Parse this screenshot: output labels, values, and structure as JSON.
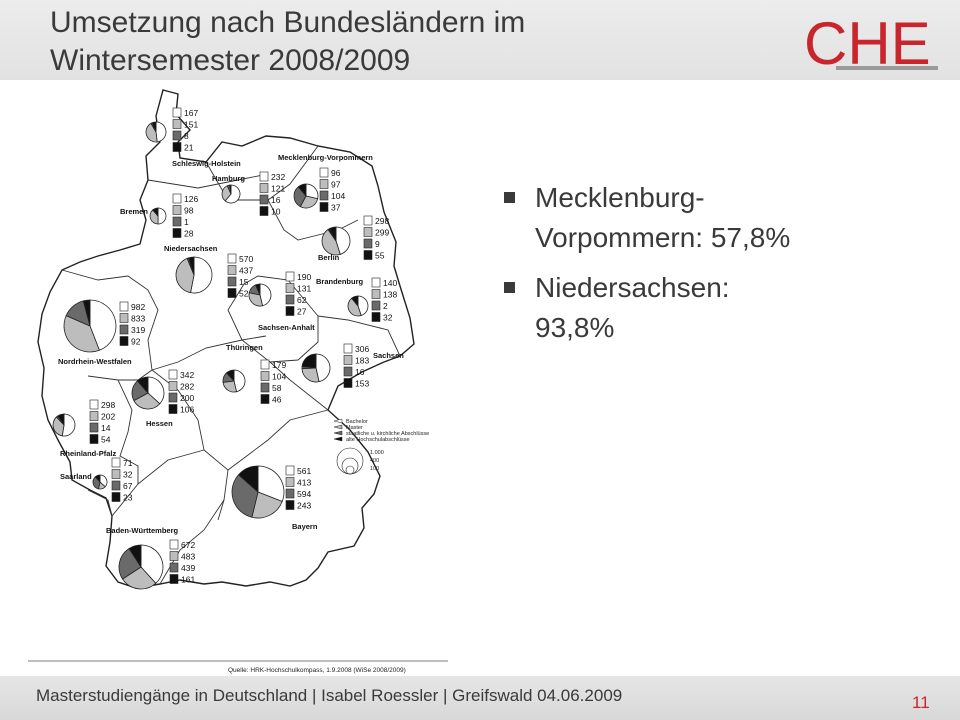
{
  "slide": {
    "title_line1": "Umsetzung nach Bundesländern im",
    "title_line2": "Wintersemester 2008/2009",
    "logo_text": "CHE",
    "colors": {
      "accent": "#c8262c",
      "text": "#3a3a3a"
    }
  },
  "bullets": [
    {
      "line1": "Mecklenburg-",
      "line2": "Vorpommern: 57,8%"
    },
    {
      "line1": "Niedersachsen:",
      "line2": "93,8%"
    }
  ],
  "map": {
    "states": [
      {
        "name": "Schleswig-Holstein",
        "values": [
          "167",
          "151",
          "8",
          "21"
        ]
      },
      {
        "name": "Mecklenburg-Vorpommern",
        "values": [
          "96",
          "97",
          "104",
          "37"
        ]
      },
      {
        "name": "Hamburg",
        "values": [
          "232",
          "121",
          "16",
          "10"
        ]
      },
      {
        "name": "Bremen",
        "values": [
          "126",
          "98",
          "1",
          "28"
        ]
      },
      {
        "name": "Berlin",
        "values": [
          "298",
          "299",
          "9",
          "55"
        ]
      },
      {
        "name": "Niedersachsen",
        "values": [
          "570",
          "437",
          "15",
          "52"
        ]
      },
      {
        "name": "Brandenburg",
        "values": [
          "140",
          "138",
          "2",
          "32"
        ]
      },
      {
        "name": "Sachsen-Anhalt",
        "values": [
          "190",
          "131",
          "62",
          "27"
        ]
      },
      {
        "name": "Nordrhein-Westfalen",
        "values": [
          "982",
          "833",
          "319",
          "92"
        ]
      },
      {
        "name": "Thüringen",
        "values": [
          "179",
          "104",
          "58",
          "46"
        ]
      },
      {
        "name": "Sachsen",
        "values": [
          "306",
          "183",
          "16",
          "153"
        ]
      },
      {
        "name": "Hessen",
        "values": [
          "342",
          "282",
          "200",
          "106"
        ]
      },
      {
        "name": "Rheinland-Pfalz",
        "values": [
          "298",
          "202",
          "14",
          "54"
        ]
      },
      {
        "name": "Saarland",
        "values": [
          "71",
          "32",
          "67",
          "23"
        ]
      },
      {
        "name": "Bayern",
        "values": [
          "561",
          "413",
          "594",
          "243"
        ]
      },
      {
        "name": "Baden-Württemberg",
        "values": [
          "672",
          "483",
          "439",
          "161"
        ]
      }
    ],
    "legend": [
      "Bachelor",
      "Master",
      "staatliche u. kirchliche Abschlüsse",
      "alte Hochschulabschlüsse"
    ],
    "size_legend": [
      "1.000",
      "400",
      "100"
    ],
    "source": "Quelle: HRK-Hochschulkompass, 1.9.2008 (WiSe 2008/2009)"
  },
  "footer": {
    "text": "Masterstudiengänge in Deutschland | Isabel Roessler | Greifswald 04.06.2009",
    "page": "11"
  }
}
